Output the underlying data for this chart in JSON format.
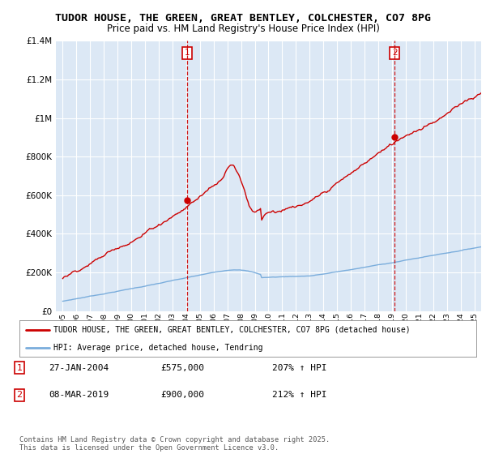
{
  "title1": "TUDOR HOUSE, THE GREEN, GREAT BENTLEY, COLCHESTER, CO7 8PG",
  "title2": "Price paid vs. HM Land Registry's House Price Index (HPI)",
  "bg_color": "#ffffff",
  "plot_bg_color": "#dce8f5",
  "grid_color": "#ffffff",
  "red_color": "#cc0000",
  "blue_color": "#7aaddc",
  "sale1_year": 2004.07,
  "sale1_price": 575000,
  "sale2_year": 2019.19,
  "sale2_price": 900000,
  "legend_red": "TUDOR HOUSE, THE GREEN, GREAT BENTLEY, COLCHESTER, CO7 8PG (detached house)",
  "legend_blue": "HPI: Average price, detached house, Tendring",
  "annotation1_date": "27-JAN-2004",
  "annotation1_price": "£575,000",
  "annotation1_hpi": "207% ↑ HPI",
  "annotation2_date": "08-MAR-2019",
  "annotation2_price": "£900,000",
  "annotation2_hpi": "212% ↑ HPI",
  "footer": "Contains HM Land Registry data © Crown copyright and database right 2025.\nThis data is licensed under the Open Government Licence v3.0.",
  "ylim": [
    0,
    1400000
  ],
  "xlim": [
    1994.5,
    2025.5
  ],
  "yticks": [
    0,
    200000,
    400000,
    600000,
    800000,
    1000000,
    1200000,
    1400000
  ]
}
